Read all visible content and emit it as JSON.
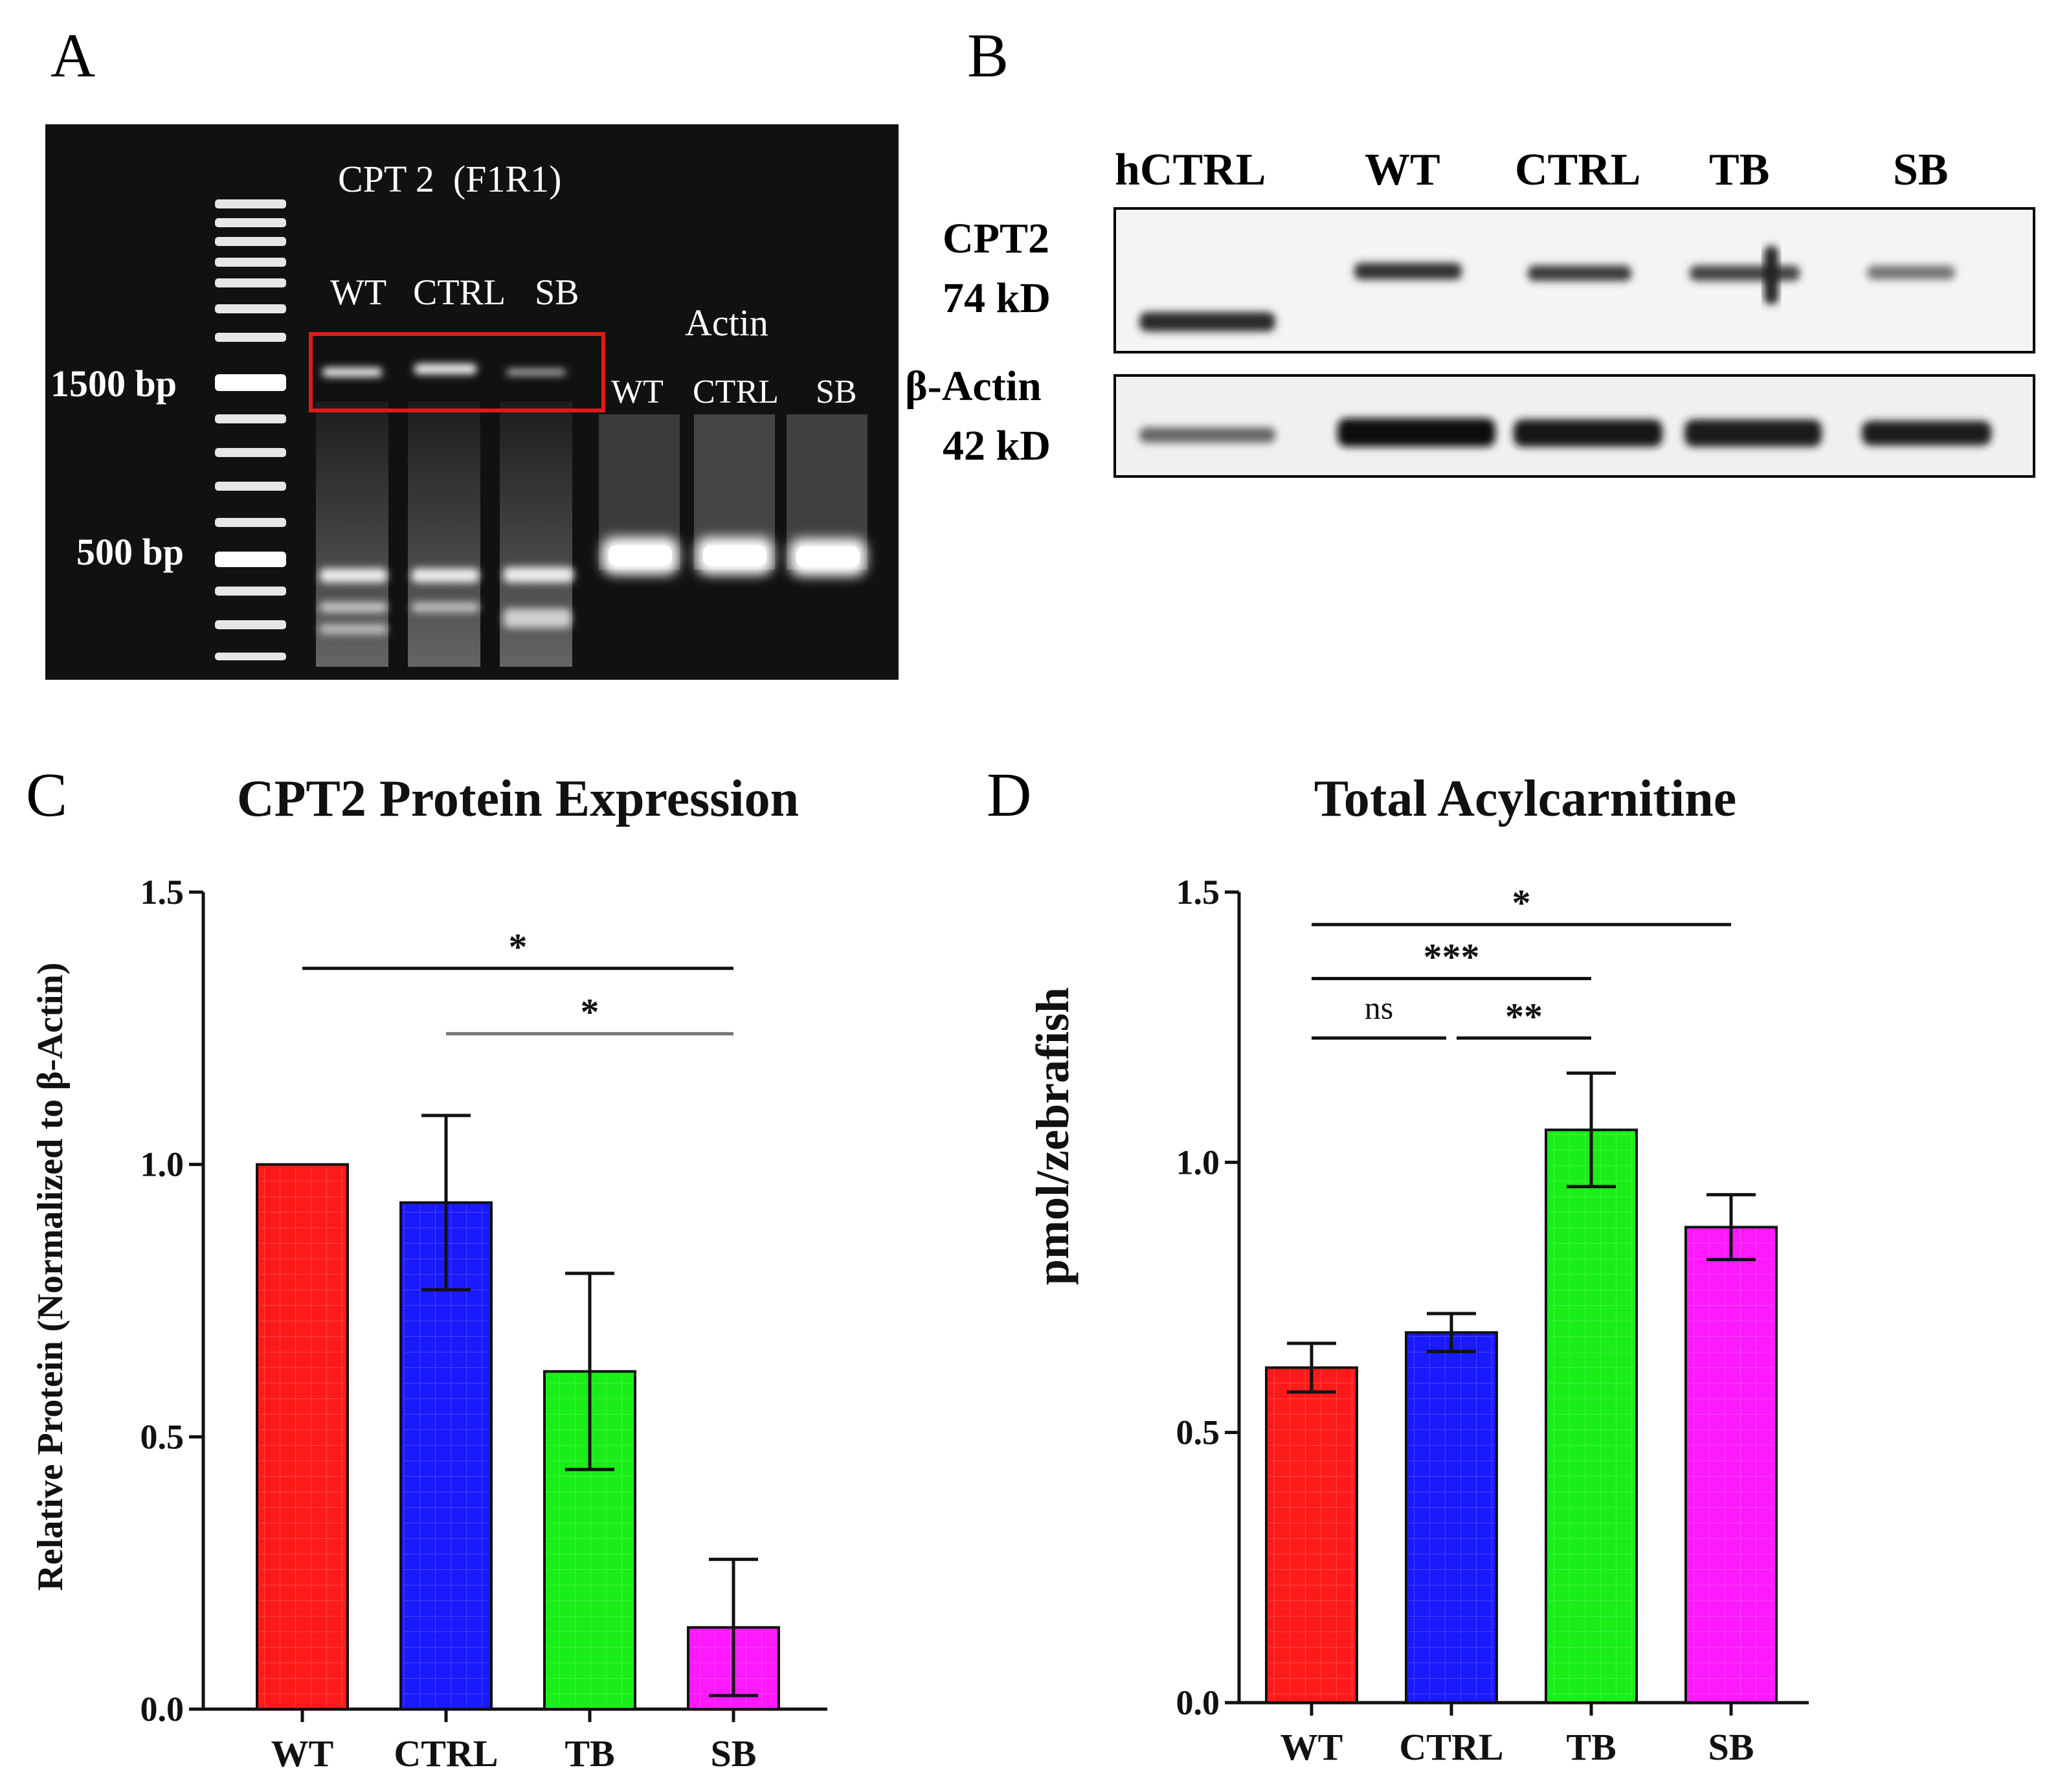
{
  "panel_a": {
    "letter": "A",
    "title": "CPT 2  (F1R1)",
    "lanes": [
      "WT",
      "CTRL",
      "SB"
    ],
    "actin_title": "Actin",
    "actin_lanes": [
      "WT",
      "CTRL",
      "SB"
    ],
    "marker_1500": "1500 bp",
    "marker_500": "500 bp",
    "box_color": "#e21a1a"
  },
  "panel_b": {
    "letter": "B",
    "lanes": [
      "hCTRL",
      "WT",
      "CTRL",
      "TB",
      "SB"
    ],
    "cpt2_label": "CPT2",
    "cpt2_kd": "74 kD",
    "actin_label": "β-Actin",
    "actin_kd": "42 kD"
  },
  "panel_c": {
    "letter": "C"
  },
  "panel_d": {
    "letter": "D"
  },
  "chart_data": [
    {
      "type": "bar",
      "title": "CPT2 Protein Expression",
      "xlabel": "",
      "ylabel": "Relative Protein (Normalized to β-Actin)",
      "categories": [
        "WT",
        "CTRL",
        "TB",
        "SB"
      ],
      "values": [
        1.0,
        0.93,
        0.62,
        0.15
      ],
      "errors": [
        0.0,
        0.16,
        0.18,
        0.125
      ],
      "colors": [
        "#ff1a1a",
        "#1a1aff",
        "#19ee19",
        "#ff19ff"
      ],
      "ylim": [
        0,
        1.5
      ],
      "yticks": [
        "0.0",
        "0.5",
        "1.0",
        "1.5"
      ],
      "significance": [
        {
          "from": "WT",
          "to": "SB",
          "label": "*",
          "y": 1.36
        },
        {
          "from": "CTRL",
          "to": "SB",
          "label": "*",
          "y": 1.24
        }
      ]
    },
    {
      "type": "bar",
      "title": "Total Acylcarnitine",
      "xlabel": "",
      "ylabel": "pmol/zebrafish",
      "categories": [
        "WT",
        "CTRL",
        "TB",
        "SB"
      ],
      "values": [
        0.62,
        0.685,
        1.06,
        0.88
      ],
      "errors": [
        0.045,
        0.035,
        0.105,
        0.06
      ],
      "colors": [
        "#ff1a1a",
        "#1a1aff",
        "#19ee19",
        "#ff19ff"
      ],
      "ylim": [
        0,
        1.5
      ],
      "yticks": [
        "0.0",
        "0.5",
        "1.0",
        "1.5"
      ],
      "significance": [
        {
          "from": "WT",
          "to": "SB",
          "label": "*",
          "y": 1.44
        },
        {
          "from": "WT",
          "to": "TB",
          "label": "***",
          "y": 1.34
        },
        {
          "from": "WT",
          "to": "CTRL",
          "label": "ns",
          "y": 1.23
        },
        {
          "from": "CTRL",
          "to": "TB",
          "label": "**",
          "y": 1.23
        }
      ]
    }
  ]
}
